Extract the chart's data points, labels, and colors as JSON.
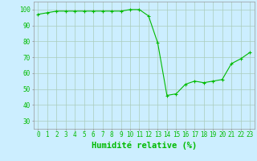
{
  "x": [
    0,
    1,
    2,
    3,
    4,
    5,
    6,
    7,
    8,
    9,
    10,
    11,
    12,
    13,
    14,
    15,
    16,
    17,
    18,
    19,
    20,
    21,
    22,
    23
  ],
  "y": [
    97,
    98,
    99,
    99,
    99,
    99,
    99,
    99,
    99,
    99,
    100,
    100,
    96,
    79,
    46,
    47,
    53,
    55,
    54,
    55,
    56,
    66,
    69,
    73
  ],
  "line_color": "#00bb00",
  "marker": "+",
  "marker_size": 3,
  "bg_color": "#cceeff",
  "grid_color": "#aaccbb",
  "xlabel": "Humidité relative (%)",
  "xlabel_color": "#00bb00",
  "ylim": [
    25,
    105
  ],
  "yticks": [
    30,
    40,
    50,
    60,
    70,
    80,
    90,
    100
  ],
  "xticks": [
    0,
    1,
    2,
    3,
    4,
    5,
    6,
    7,
    8,
    9,
    10,
    11,
    12,
    13,
    14,
    15,
    16,
    17,
    18,
    19,
    20,
    21,
    22,
    23
  ],
  "tick_label_fontsize": 5.5,
  "xlabel_fontsize": 7.5
}
